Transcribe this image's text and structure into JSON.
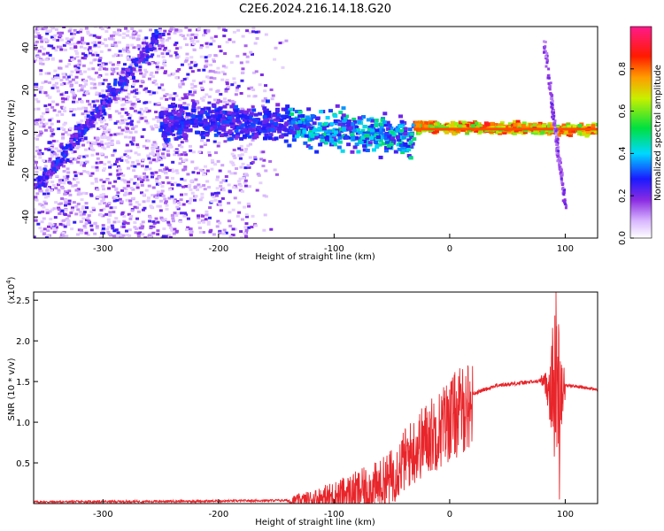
{
  "title": "C2E6.2024.216.14.18.G20",
  "chart_data": [
    {
      "type": "heatmap",
      "xlabel": "Height of straight line (km)",
      "ylabel": "Frequency (Hz)",
      "xlim": [
        -360,
        128
      ],
      "ylim": [
        -50,
        50
      ],
      "xticks": [
        "-300",
        "-200",
        "-100",
        "0",
        "100"
      ],
      "yticks": [
        "40",
        "20",
        "0",
        "-20",
        "-40"
      ],
      "colorbar": {
        "label": "Normalized spectral amplitude",
        "range": [
          0,
          1
        ],
        "ticks": [
          "0.0",
          "0.2",
          "0.4",
          "0.6",
          "0.8"
        ],
        "colormap": "rainbow (white -> violet -> blue -> cyan -> green -> yellow -> red -> magenta)"
      },
      "features": [
        {
          "name": "diagonal streak",
          "x": [
            -355,
            -250
          ],
          "y": [
            -25,
            47
          ]
        },
        {
          "name": "main band",
          "x": [
            -250,
            128
          ],
          "y": [
            5,
            1
          ],
          "peak_amplitude": 0.9
        },
        {
          "name": "noise floor region",
          "x": [
            -360,
            -140
          ],
          "y": [
            -50,
            50
          ]
        },
        {
          "name": "steep streak near 95 km",
          "x": [
            82,
            100
          ],
          "y": [
            42,
            -35
          ]
        }
      ]
    },
    {
      "type": "line",
      "xlabel": "Height of straight line (km)",
      "ylabel": "SNR (10 * v/v)",
      "yscale_note": "(x10^4)",
      "xlim": [
        -360,
        128
      ],
      "ylim": [
        0,
        2.6
      ],
      "xticks": [
        "-300",
        "-200",
        "-100",
        "0",
        "100"
      ],
      "yticks": [
        "0.5",
        "1.0",
        "1.5",
        "2.0",
        "2.5"
      ],
      "series": [
        {
          "color": "#e8252a",
          "envelope": {
            "x": [
              -360,
              -200,
              -140,
              -120,
              -100,
              -80,
              -60,
              -50,
              -40,
              -30,
              -20,
              -10,
              0,
              20,
              40,
              60,
              75,
              80,
              85,
              90,
              95,
              100,
              105,
              110,
              128
            ],
            "y": [
              0.02,
              0.03,
              0.04,
              0.07,
              0.13,
              0.2,
              0.28,
              0.4,
              0.6,
              0.75,
              0.9,
              1.0,
              1.15,
              1.35,
              1.45,
              1.48,
              1.5,
              1.52,
              1.45,
              1.45,
              1.45,
              1.45,
              1.45,
              1.44,
              1.4
            ]
          },
          "max_value": 2.6,
          "max_at_x": 92
        }
      ]
    }
  ]
}
